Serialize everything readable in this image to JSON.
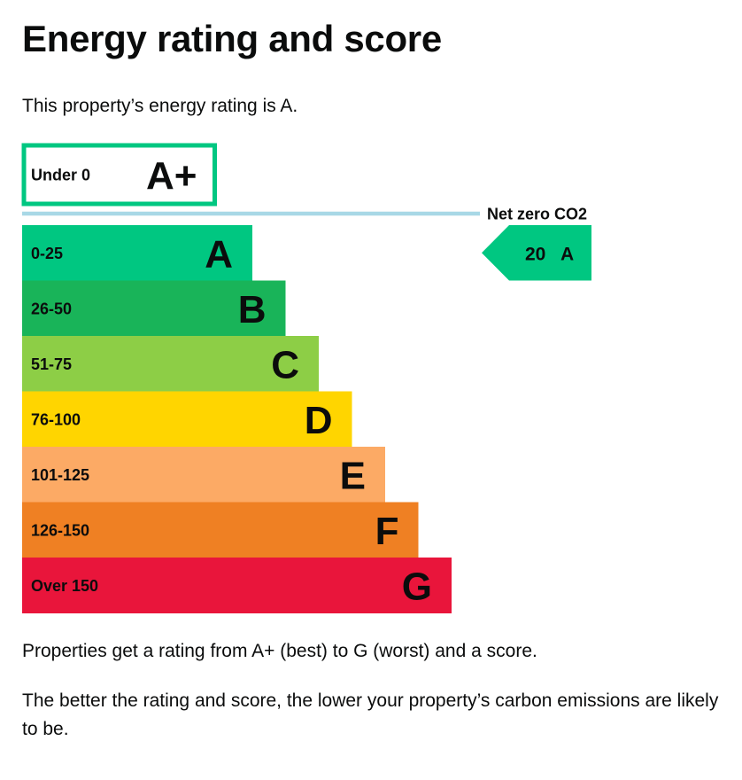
{
  "page": {
    "title": "Energy rating and score",
    "intro": "This property’s energy rating is A.",
    "explain1": "Properties get a rating from A+ (best) to G (worst) and a score.",
    "explain2": "The better the rating and score, the lower your property’s carbon emissions are likely to be."
  },
  "chart_data": {
    "type": "bar",
    "title": "",
    "net_zero_label": "Net zero CO2",
    "bands": [
      {
        "range": "Under 0",
        "letter": "A+",
        "level": 1,
        "color": "#00c781",
        "outlined": true
      },
      {
        "range": "0-25",
        "letter": "A",
        "level": 2,
        "color": "#00c781"
      },
      {
        "range": "26-50",
        "letter": "B",
        "level": 3,
        "color": "#19b459"
      },
      {
        "range": "51-75",
        "letter": "C",
        "level": 4,
        "color": "#8dce46"
      },
      {
        "range": "76-100",
        "letter": "D",
        "level": 5,
        "color": "#ffd500"
      },
      {
        "range": "101-125",
        "letter": "E",
        "level": 6,
        "color": "#fcaa65"
      },
      {
        "range": "126-150",
        "letter": "F",
        "level": 7,
        "color": "#ef8023"
      },
      {
        "range": "Over 150",
        "letter": "G",
        "level": 8,
        "color": "#e9153b"
      }
    ],
    "current": {
      "score": "20",
      "letter": "A",
      "band_index": 1,
      "color": "#00c781"
    },
    "net_zero_line_color": "#a8d8e6"
  }
}
